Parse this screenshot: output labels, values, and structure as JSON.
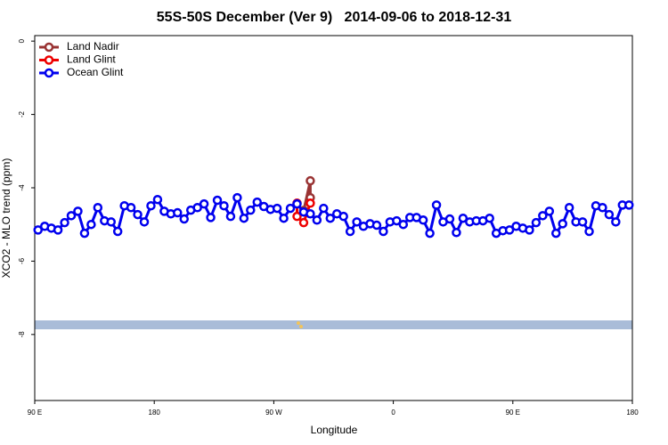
{
  "chart_data": {
    "type": "line",
    "title": "55S-50S December (Ver 9)   2014-09-06 to 2018-12-31",
    "xlabel": "Longitude",
    "ylabel": "XCO2 - MLO trend (ppm)",
    "xlim": [
      90,
      540
    ],
    "ylim": [
      -9.8,
      0.15
    ],
    "xticks": [
      {
        "value": 90,
        "label": "90 E"
      },
      {
        "value": 180,
        "label": "180"
      },
      {
        "value": 270,
        "label": "90 W"
      },
      {
        "value": 360,
        "label": "0"
      },
      {
        "value": 450,
        "label": "90 E"
      },
      {
        "value": 540,
        "label": "180"
      }
    ],
    "yticks": [
      0,
      -2,
      -4,
      -6,
      -8
    ],
    "legend": "upper left",
    "series": [
      {
        "name": "Land Nadir",
        "color": "#993333",
        "x": [
          292.5,
          297.5,
          297.5
        ],
        "values": [
          -4.62,
          -3.81,
          -4.27
        ]
      },
      {
        "name": "Land Glint",
        "color": "#ee0000",
        "x": [
          287.5,
          287.5,
          292.5,
          297.5
        ],
        "values": [
          -4.42,
          -4.78,
          -4.95,
          -4.42
        ]
      },
      {
        "name": "Ocean Glint",
        "color": "#0000ee",
        "x": [
          92.5,
          97.5,
          102.5,
          107.5,
          112.5,
          117.5,
          122.5,
          127.5,
          132.5,
          137.5,
          142.5,
          147.5,
          152.5,
          157.5,
          162.5,
          167.5,
          172.5,
          177.5,
          182.5,
          187.5,
          192.5,
          197.5,
          202.5,
          207.5,
          212.5,
          217.5,
          222.5,
          227.5,
          232.5,
          237.5,
          242.5,
          247.5,
          252.5,
          257.5,
          262.5,
          267.5,
          272.5,
          277.5,
          282.5,
          287.5,
          292.5,
          297.5,
          302.5,
          307.5,
          312.5,
          317.5,
          322.5,
          327.5,
          332.5,
          337.5,
          342.5,
          347.5,
          352.5,
          357.5,
          362.5,
          367.5,
          372.5,
          377.5,
          382.5,
          387.5,
          392.5,
          397.5,
          402.5,
          407.5,
          412.5,
          417.5,
          422.5,
          427.5,
          432.5,
          437.5,
          442.5,
          447.5,
          452.5,
          457.5,
          462.5,
          467.5,
          472.5,
          477.5,
          482.5,
          487.5,
          492.5,
          497.5,
          502.5,
          507.5,
          512.5,
          517.5,
          522.5,
          527.5,
          532.5,
          537.5
        ],
        "values": [
          -5.15,
          -5.05,
          -5.1,
          -5.15,
          -4.95,
          -4.76,
          -4.64,
          -5.24,
          -5.0,
          -4.54,
          -4.9,
          -4.93,
          -5.19,
          -4.49,
          -4.54,
          -4.73,
          -4.93,
          -4.49,
          -4.32,
          -4.64,
          -4.71,
          -4.68,
          -4.85,
          -4.61,
          -4.54,
          -4.44,
          -4.81,
          -4.34,
          -4.49,
          -4.78,
          -4.27,
          -4.83,
          -4.61,
          -4.39,
          -4.51,
          -4.59,
          -4.56,
          -4.83,
          -4.56,
          -4.44,
          -4.66,
          -4.71,
          -4.88,
          -4.56,
          -4.83,
          -4.71,
          -4.78,
          -5.19,
          -4.93,
          -5.05,
          -4.98,
          -5.02,
          -5.19,
          -4.93,
          -4.9,
          -5.0,
          -4.81,
          -4.81,
          -4.88,
          -5.24,
          -4.47,
          -4.93,
          -4.85,
          -5.22,
          -4.83,
          -4.93,
          -4.9,
          -4.9,
          -4.83,
          -5.24,
          -5.17,
          -5.15,
          -5.05,
          -5.1,
          -5.15,
          -4.95,
          -4.76,
          -4.64,
          -5.24,
          -4.98,
          -4.54,
          -4.93,
          -4.93,
          -5.19,
          -4.49,
          -4.54,
          -4.73,
          -4.93,
          -4.47,
          -4.47
        ]
      }
    ]
  }
}
